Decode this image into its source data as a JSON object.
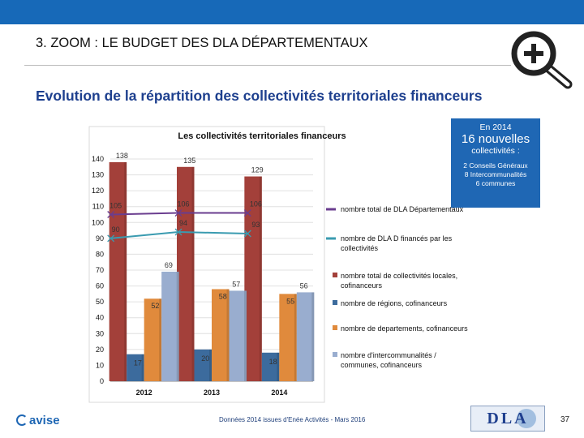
{
  "slide": {
    "title": "3. ZOOM : LE BUDGET DES DLA DÉPARTEMENTAUX",
    "subtitle": "Evolution de la répartition des collectivités territoriales financeurs"
  },
  "callout": {
    "line1": "En 2014",
    "line2": "16 nouvelles",
    "line3": "collectivités :",
    "details": [
      "2 Conseils Généraux",
      "8 Intercommunalités",
      "6 communes"
    ]
  },
  "footer": {
    "logo_text": "avise",
    "source": "Données 2014 issues d'Enée Activités - Mars 2016",
    "page": "37",
    "dla_logo": "DLA"
  },
  "colors": {
    "topbar": "#1769b8",
    "communes": "#a3403a",
    "regions": "#3c6b9d",
    "departements": "#e08a3c",
    "intercommunalites": "#99adcf",
    "total_dla": "#6a3d8f",
    "financed_dla": "#3a9bb0",
    "callout": "#1f67b4"
  },
  "chart_data": {
    "type": "bar",
    "title": "Les collectivités territoriales financeurs",
    "categories": [
      "2012",
      "2013",
      "2014"
    ],
    "ylim": [
      0,
      140
    ],
    "yticks": [
      0,
      10,
      20,
      30,
      40,
      50,
      60,
      70,
      80,
      90,
      100,
      110,
      120,
      130,
      140
    ],
    "series": [
      {
        "key": "communes",
        "name": "nombre total de collectivités locales, cofinanceurs",
        "kind": "bar",
        "values": [
          138,
          135,
          129
        ]
      },
      {
        "key": "regions",
        "name": "nombre de régions, cofinanceurs",
        "kind": "bar",
        "values": [
          17,
          20,
          18
        ]
      },
      {
        "key": "departements",
        "name": "nombre de departements, cofinanceurs",
        "kind": "bar",
        "values": [
          52,
          58,
          55
        ]
      },
      {
        "key": "intercommunalites",
        "name": "nombre d'intercommunalités / communes, cofinanceurs",
        "kind": "bar",
        "values": [
          69,
          57,
          56
        ]
      },
      {
        "key": "total_dla",
        "name": "nombre total de DLA Départementaux",
        "kind": "line",
        "values": [
          105,
          106,
          106
        ]
      },
      {
        "key": "financed_dla",
        "name": "nombre de DLA D financés par les collectivités",
        "kind": "line",
        "values": [
          90,
          94,
          93
        ]
      }
    ]
  }
}
